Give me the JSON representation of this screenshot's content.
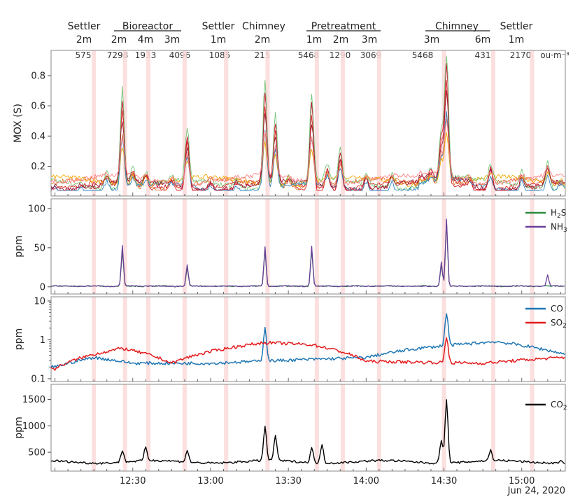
{
  "chart_data": [
    {
      "type": "line",
      "id": "mox",
      "ylabel": "MOX (S)",
      "ylim": [
        0.04,
        0.93
      ],
      "yticks": [
        "0.2",
        "0.4",
        "0.6",
        "0.8"
      ],
      "yticks_values": [
        0.2,
        0.4,
        0.6,
        0.8
      ],
      "series_colors": [
        "#c8102e",
        "#d62728",
        "#e07b39",
        "#f2a900",
        "#74c476",
        "#3182bd",
        "#9e1b32",
        "#ff7f7f"
      ],
      "samples": [
        {
          "x": "12:00",
          "y": 0.07
        },
        {
          "x": "12:10",
          "y": 0.08
        },
        {
          "x": "12:20",
          "y": 0.15
        },
        {
          "x": "12:26",
          "y": 0.65
        },
        {
          "x": "12:30",
          "y": 0.18
        },
        {
          "x": "12:35",
          "y": 0.15
        },
        {
          "x": "12:45",
          "y": 0.12
        },
        {
          "x": "12:51",
          "y": 0.42
        },
        {
          "x": "13:00",
          "y": 0.1
        },
        {
          "x": "13:10",
          "y": 0.1
        },
        {
          "x": "13:21",
          "y": 0.7
        },
        {
          "x": "13:25",
          "y": 0.5
        },
        {
          "x": "13:30",
          "y": 0.12
        },
        {
          "x": "13:39",
          "y": 0.62
        },
        {
          "x": "13:45",
          "y": 0.2
        },
        {
          "x": "13:50",
          "y": 0.3
        },
        {
          "x": "14:00",
          "y": 0.14
        },
        {
          "x": "14:10",
          "y": 0.14
        },
        {
          "x": "14:25",
          "y": 0.18
        },
        {
          "x": "14:29",
          "y": 0.42
        },
        {
          "x": "14:31",
          "y": 0.9
        },
        {
          "x": "14:40",
          "y": 0.12
        },
        {
          "x": "14:48",
          "y": 0.2
        },
        {
          "x": "15:00",
          "y": 0.15
        },
        {
          "x": "15:10",
          "y": 0.22
        },
        {
          "x": "15:15",
          "y": 0.1
        }
      ]
    },
    {
      "type": "line",
      "id": "ppm_h2s_nh3",
      "ylabel": "ppm",
      "ylim": [
        -2,
        100
      ],
      "yticks": [
        "0",
        "50",
        "100"
      ],
      "yticks_values": [
        0,
        50,
        100
      ],
      "series": [
        {
          "name": "H2S",
          "legend_main": "H",
          "legend_sub": "2",
          "legend_tail": "S",
          "color": "#2e8b3e",
          "values": [
            {
              "x": "12:00",
              "y": 2
            },
            {
              "x": "12:26",
              "y": 48
            },
            {
              "x": "12:51",
              "y": 25
            },
            {
              "x": "13:21",
              "y": 48
            },
            {
              "x": "13:39",
              "y": 48
            },
            {
              "x": "14:29",
              "y": 30
            },
            {
              "x": "14:31",
              "y": 84
            },
            {
              "x": "15:15",
              "y": 1
            }
          ]
        },
        {
          "name": "NH3",
          "legend_main": "NH",
          "legend_sub": "3",
          "legend_tail": "",
          "color": "#6a3d9a",
          "values": [
            {
              "x": "12:00",
              "y": 0
            },
            {
              "x": "12:26",
              "y": 53
            },
            {
              "x": "12:51",
              "y": 28
            },
            {
              "x": "13:21",
              "y": 51
            },
            {
              "x": "13:39",
              "y": 52
            },
            {
              "x": "14:29",
              "y": 32
            },
            {
              "x": "14:31",
              "y": 87
            },
            {
              "x": "15:10",
              "y": 15
            },
            {
              "x": "15:15",
              "y": 1
            }
          ]
        }
      ]
    },
    {
      "type": "line",
      "id": "ppm_co_so2",
      "ylabel": "ppm",
      "yscale": "log",
      "ylim": [
        0.1,
        10
      ],
      "yticks": [
        "0.1",
        "1",
        "10"
      ],
      "yticks_values": [
        0.1,
        1,
        10
      ],
      "series": [
        {
          "name": "CO",
          "legend_main": "CO",
          "legend_sub": "",
          "legend_tail": "",
          "color": "#1f77b4",
          "values": [
            {
              "x": "12:00",
              "y": 0.2
            },
            {
              "x": "12:15",
              "y": 0.35
            },
            {
              "x": "12:30",
              "y": 0.25
            },
            {
              "x": "13:00",
              "y": 0.25
            },
            {
              "x": "13:21",
              "y": 2.0
            },
            {
              "x": "13:30",
              "y": 0.3
            },
            {
              "x": "14:00",
              "y": 0.35
            },
            {
              "x": "14:20",
              "y": 0.6
            },
            {
              "x": "14:31",
              "y": 4.8
            },
            {
              "x": "14:50",
              "y": 0.9
            },
            {
              "x": "15:15",
              "y": 0.45
            }
          ]
        },
        {
          "name": "SO2",
          "legend_main": "SO",
          "legend_sub": "2",
          "legend_tail": "",
          "color": "#e31a1c",
          "values": [
            {
              "x": "12:00",
              "y": 0.18
            },
            {
              "x": "12:26",
              "y": 0.6
            },
            {
              "x": "12:45",
              "y": 0.25
            },
            {
              "x": "13:21",
              "y": 0.85
            },
            {
              "x": "13:39",
              "y": 0.75
            },
            {
              "x": "14:00",
              "y": 0.28
            },
            {
              "x": "14:31",
              "y": 1.2
            },
            {
              "x": "14:45",
              "y": 0.25
            },
            {
              "x": "15:15",
              "y": 0.35
            }
          ]
        }
      ]
    },
    {
      "type": "line",
      "id": "ppm_co2",
      "ylabel": "ppm",
      "ylim": [
        250,
        1600
      ],
      "yticks": [
        "500",
        "1000",
        "1500"
      ],
      "yticks_values": [
        500,
        1000,
        1500
      ],
      "series": [
        {
          "name": "CO2",
          "legend_main": "CO",
          "legend_sub": "2",
          "legend_tail": "",
          "color": "#000000",
          "values": [
            {
              "x": "12:00",
              "y": 330
            },
            {
              "x": "12:26",
              "y": 540
            },
            {
              "x": "12:35",
              "y": 600
            },
            {
              "x": "12:51",
              "y": 530
            },
            {
              "x": "13:21",
              "y": 980
            },
            {
              "x": "13:25",
              "y": 820
            },
            {
              "x": "13:39",
              "y": 580
            },
            {
              "x": "13:43",
              "y": 660
            },
            {
              "x": "14:29",
              "y": 740
            },
            {
              "x": "14:31",
              "y": 1480
            },
            {
              "x": "14:48",
              "y": 540
            },
            {
              "x": "15:15",
              "y": 330
            }
          ]
        }
      ]
    }
  ],
  "x_axis": {
    "ticks": [
      "12:30",
      "13:00",
      "13:30",
      "14:00",
      "14:30",
      "15:00"
    ],
    "date_label": "Jun 24, 2020"
  },
  "sites": [
    {
      "label": "Settler",
      "bar": false
    },
    {
      "label": "Bioreactor",
      "bar": true
    },
    {
      "label": "Settler",
      "bar": false
    },
    {
      "label": "Chimney",
      "bar": false
    },
    {
      "label": "Pretreatment",
      "bar": true
    },
    {
      "label": "Chimney",
      "bar": true
    },
    {
      "label": "Settler",
      "bar": false
    }
  ],
  "distances": [
    "2m",
    "2m",
    "4m",
    "3m",
    "1m",
    "2m",
    "1m",
    "2m",
    "3m",
    "3m",
    "6m",
    "1m"
  ],
  "concentrations": [
    "575",
    "7298",
    "1933",
    "4096",
    "1085",
    "215",
    "5468",
    "1290",
    "3069",
    "5468",
    "431",
    "2170"
  ],
  "concentration_unit": "ou·m⁻³",
  "measurement_times": [
    "12:15",
    "12:27",
    "12:36",
    "12:50",
    "13:06",
    "13:22",
    "13:41",
    "13:51",
    "14:05",
    "14:30",
    "14:49",
    "15:04"
  ]
}
